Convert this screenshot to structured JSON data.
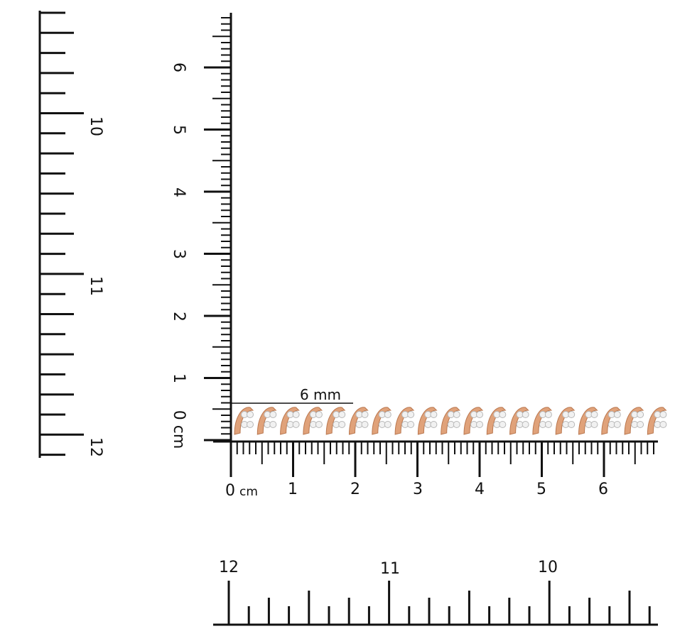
{
  "left_ruler": {
    "labels": [
      "10",
      "11",
      "12"
    ]
  },
  "vertical_ruler": {
    "labels": [
      "0 cm",
      "1",
      "2",
      "3",
      "4",
      "5",
      "6"
    ]
  },
  "horizontal_ruler": {
    "labels": [
      "0",
      "1",
      "2",
      "3",
      "4",
      "5",
      "6"
    ],
    "unit": "cm"
  },
  "bottom_ruler": {
    "labels": [
      "12",
      "11",
      "10"
    ]
  },
  "measurement": {
    "label": "6 mm",
    "value_mm": 6
  },
  "bracelet": {
    "metal_color": "#e0a27a",
    "stone_color": "#f1f1f1"
  }
}
